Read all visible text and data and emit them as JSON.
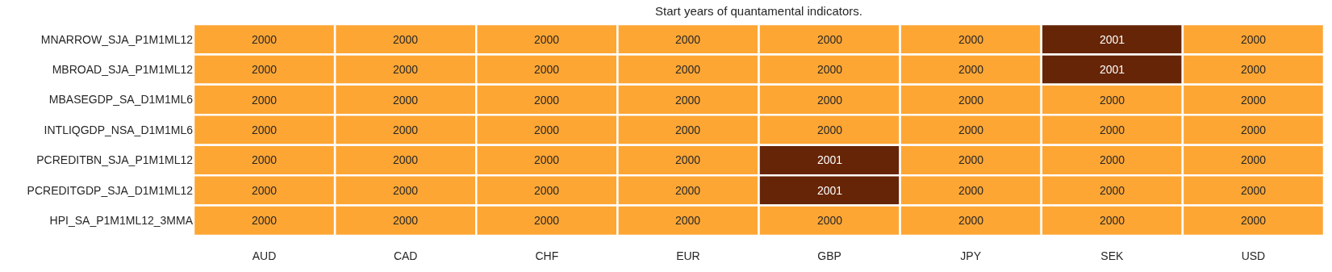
{
  "chart_data": {
    "type": "heatmap",
    "title": "Start years of quantamental indicators.",
    "categories": [
      "AUD",
      "CAD",
      "CHF",
      "EUR",
      "GBP",
      "JPY",
      "SEK",
      "USD"
    ],
    "y_categories": [
      "MNARROW_SJA_P1M1ML12",
      "MBROAD_SJA_P1M1ML12",
      "MBASEGDP_SA_D1M1ML6",
      "INTLIQGDP_NSA_D1M1ML6",
      "PCREDITBN_SJA_P1M1ML12",
      "PCREDITGDP_SJA_D1M1ML12",
      "HPI_SA_P1M1ML12_3MMA"
    ],
    "cells": [
      [
        2000,
        2000,
        2000,
        2000,
        2000,
        2000,
        2001,
        2000
      ],
      [
        2000,
        2000,
        2000,
        2000,
        2000,
        2000,
        2001,
        2000
      ],
      [
        2000,
        2000,
        2000,
        2000,
        2000,
        2000,
        2000,
        2000
      ],
      [
        2000,
        2000,
        2000,
        2000,
        2000,
        2000,
        2000,
        2000
      ],
      [
        2000,
        2000,
        2000,
        2000,
        2001,
        2000,
        2000,
        2000
      ],
      [
        2000,
        2000,
        2000,
        2000,
        2001,
        2000,
        2000,
        2000
      ],
      [
        2000,
        2000,
        2000,
        2000,
        2000,
        2000,
        2000,
        2000
      ]
    ],
    "colors": [
      "#fea634",
      "#662506"
    ],
    "data_labels": true,
    "grid": false
  }
}
